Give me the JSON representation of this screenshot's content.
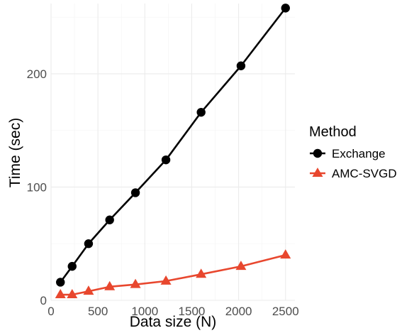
{
  "chart_data": {
    "type": "line",
    "xlabel": "Data size (N)",
    "ylabel": "Time (sec)",
    "xlim": [
      0,
      2600
    ],
    "ylim": [
      0,
      262
    ],
    "x_ticks": [
      0,
      500,
      1000,
      1500,
      2000,
      2500
    ],
    "y_ticks": [
      0,
      100,
      200
    ],
    "grid": true,
    "legend": {
      "title": "Method",
      "position": "right"
    },
    "series": [
      {
        "name": "Exchange",
        "marker": "circle",
        "color": "#000000",
        "x": [
          100,
          225,
          400,
          625,
          900,
          1225,
          1600,
          2025,
          2500
        ],
        "y": [
          16,
          30,
          50,
          71,
          95,
          124,
          166,
          207,
          258
        ]
      },
      {
        "name": "AMC-SVGD",
        "marker": "triangle",
        "color": "#e8472e",
        "x": [
          100,
          225,
          400,
          625,
          900,
          1225,
          1600,
          2025,
          2500
        ],
        "y": [
          5,
          5,
          8,
          12,
          14,
          17,
          23,
          30,
          40
        ]
      }
    ]
  }
}
